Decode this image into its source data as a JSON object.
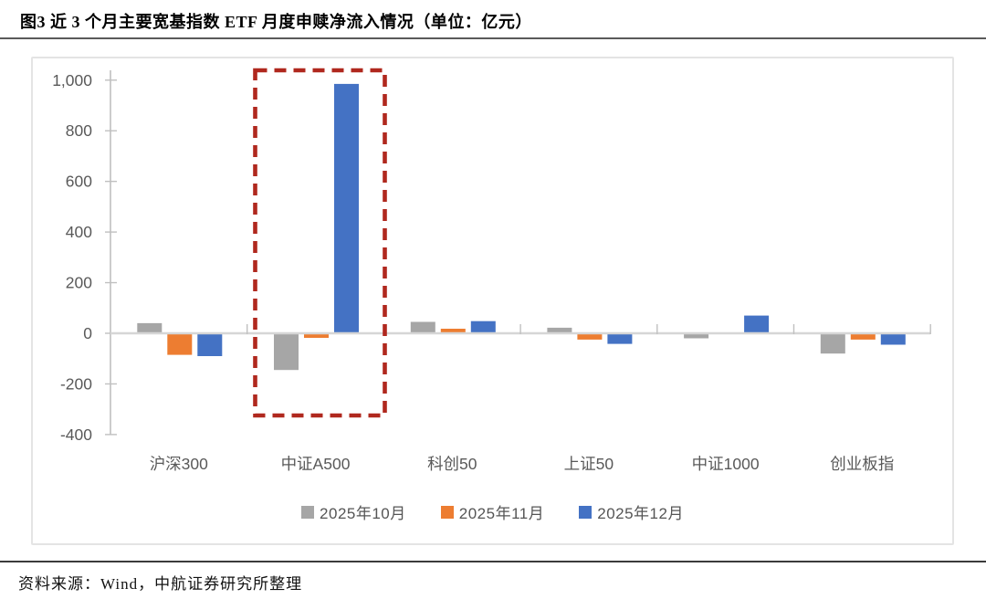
{
  "title": "图3  近 3 个月主要宽基指数 ETF 月度申赎净流入情况（单位：亿元）",
  "source": "资料来源：Wind，中航证券研究所整理",
  "colors": {
    "series_gray": "#A6A6A6",
    "series_orange": "#ED7D31",
    "series_blue": "#4472C4",
    "highlight_red": "#B0281E",
    "axis_line": "#C0C0C0",
    "zero_line": "#D6D6D6",
    "axis_text": "#595959"
  },
  "chart_data": {
    "type": "bar",
    "title": "近 3 个月主要宽基指数 ETF 月度申赎净流入情况",
    "unit": "亿元",
    "categories": [
      "沪深300",
      "中证A500",
      "科创50",
      "上证50",
      "中证1000",
      "创业板指"
    ],
    "series": [
      {
        "name": "2025年10月",
        "color": "#A6A6A6",
        "values": [
          40,
          -145,
          45,
          22,
          -20,
          -80
        ]
      },
      {
        "name": "2025年11月",
        "color": "#ED7D31",
        "values": [
          -85,
          -18,
          18,
          -25,
          0,
          -25
        ]
      },
      {
        "name": "2025年12月",
        "color": "#4472C4",
        "values": [
          -90,
          985,
          48,
          -42,
          70,
          -45
        ]
      }
    ],
    "xlabel": "",
    "ylabel": "",
    "y_axis": {
      "min": -400,
      "max": 1000,
      "step": 200,
      "tick_labels": [
        "1,000",
        "800",
        "600",
        "400",
        "200",
        "0",
        "-200",
        "-400"
      ]
    },
    "grid": false,
    "legend_position": "bottom",
    "highlight": {
      "category": "中证A500",
      "style": "red-dashed-box",
      "color": "#B0281E"
    }
  }
}
